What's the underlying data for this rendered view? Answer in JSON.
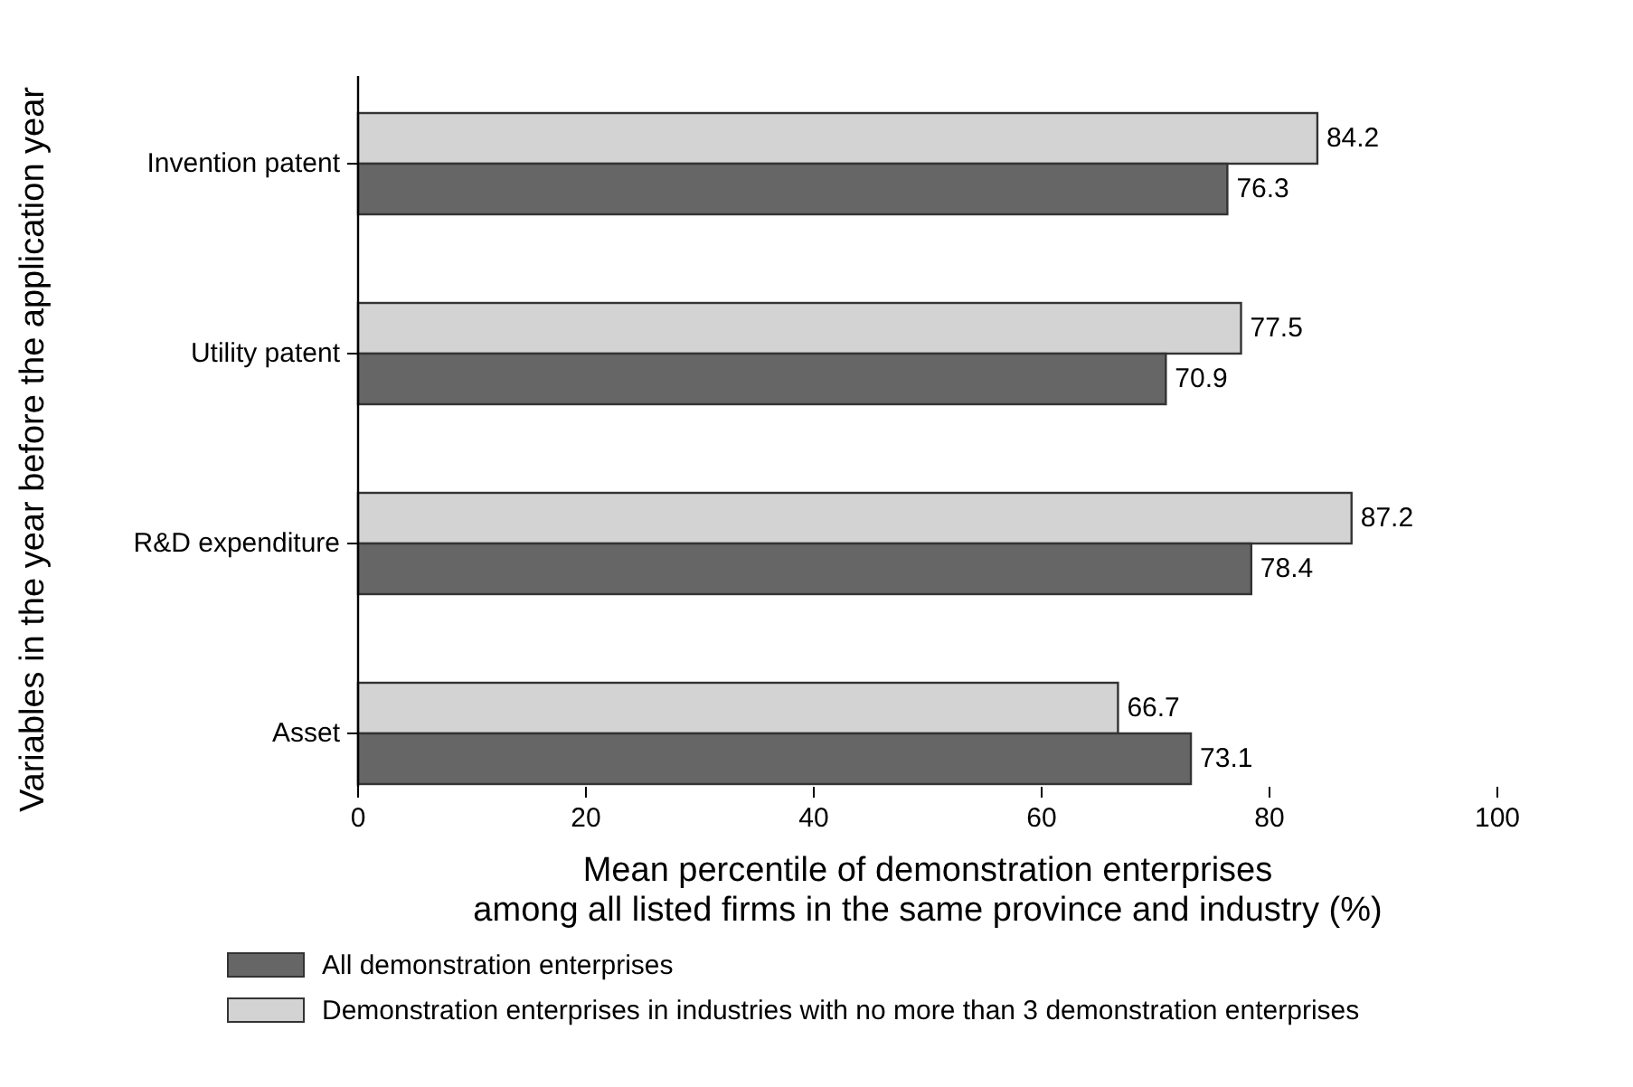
{
  "chart_data": {
    "type": "bar",
    "orientation": "horizontal",
    "ylabel": "Variables in the year before the application year",
    "xlabel": "Mean percentile of demonstration enterprises\namong all listed firms in the same province and industry (%)",
    "categories": [
      "Invention patent",
      "Utility patent",
      "R&D expenditure",
      "Asset"
    ],
    "series": [
      {
        "name": "Demonstration enterprises in industries with no more than 3 demonstration enterprises",
        "color": "#d3d3d3",
        "values": [
          84.2,
          77.5,
          87.2,
          66.7
        ]
      },
      {
        "name": "All demonstration enterprises",
        "color": "#666666",
        "values": [
          76.3,
          70.9,
          78.4,
          73.1
        ]
      }
    ],
    "xlim": [
      0,
      100
    ],
    "xticks": [
      0,
      20,
      40,
      60,
      80,
      100
    ],
    "data_labels": true,
    "grid": false,
    "legend": "bottom"
  }
}
